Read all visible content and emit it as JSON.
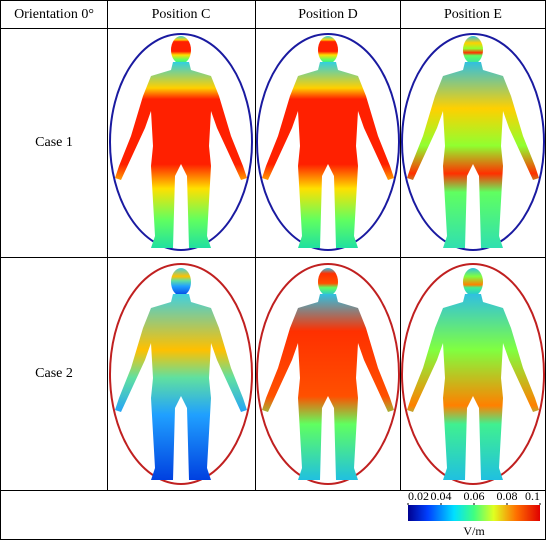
{
  "table": {
    "header": [
      "Orientation 0°",
      "Position C",
      "Position D",
      "Position E"
    ],
    "rows": [
      "Case 1",
      "Case 2"
    ]
  },
  "colorbar": {
    "ticks": [
      0.02,
      0.04,
      0.06,
      0.08,
      0.1
    ],
    "unit": "V/m"
  }
}
